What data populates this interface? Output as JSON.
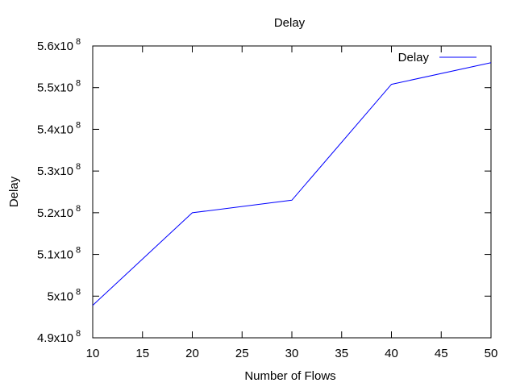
{
  "chart_data": {
    "type": "line",
    "title": "Delay",
    "xlabel": "Number of Flows",
    "ylabel": "Delay",
    "xlim": [
      10,
      50
    ],
    "ylim": [
      490000000,
      560000000
    ],
    "x_ticks": [
      10,
      15,
      20,
      25,
      30,
      35,
      40,
      45,
      50
    ],
    "x_tick_labels": [
      "10",
      "15",
      "20",
      "25",
      "30",
      "35",
      "40",
      "45",
      "50"
    ],
    "y_ticks": [
      490000000,
      500000000,
      510000000,
      520000000,
      530000000,
      540000000,
      550000000,
      560000000
    ],
    "y_tick_labels": [
      {
        "mantissa": "4.9x10",
        "exp": "8"
      },
      {
        "mantissa": "5x10",
        "exp": "8"
      },
      {
        "mantissa": "5.1x10",
        "exp": "8"
      },
      {
        "mantissa": "5.2x10",
        "exp": "8"
      },
      {
        "mantissa": "5.3x10",
        "exp": "8"
      },
      {
        "mantissa": "5.4x10",
        "exp": "8"
      },
      {
        "mantissa": "5.5x10",
        "exp": "8"
      },
      {
        "mantissa": "5.6x10",
        "exp": "8"
      }
    ],
    "grid": false,
    "legend_position": "top-right",
    "series": [
      {
        "name": "Delay",
        "color": "#0000ff",
        "x": [
          10,
          20,
          30,
          40,
          50
        ],
        "y": [
          497800000,
          520000000,
          523000000,
          550800000,
          556000000
        ]
      }
    ]
  }
}
